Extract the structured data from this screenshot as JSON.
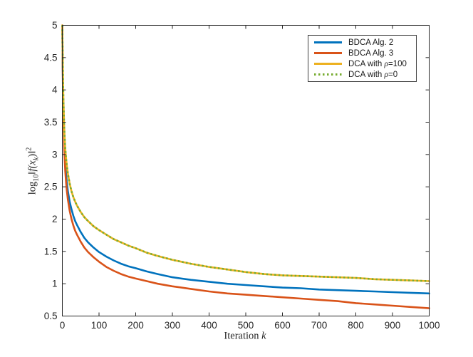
{
  "figure": {
    "background": "#ffffff",
    "axes_color": "#262626",
    "xlabel": {
      "text": "Iteration",
      "var": "k"
    },
    "ylabel": {
      "log": "log",
      "base": "10",
      "bar1": "‖",
      "fx": "f(x",
      "ksub": "k",
      "close": ")",
      "bar2": "‖",
      "exp": "2"
    },
    "x_ticks": [
      "0",
      "100",
      "200",
      "300",
      "400",
      "500",
      "600",
      "700",
      "800",
      "900",
      "1000"
    ],
    "y_ticks": [
      "0.5",
      "1",
      "1.5",
      "2",
      "2.5",
      "3",
      "3.5",
      "4",
      "4.5",
      "5"
    ]
  },
  "legend": {
    "border_color": "#404040",
    "items": [
      {
        "pre": "BDCA Alg. 2",
        "rho": "",
        "post": "",
        "color": "#0072BD",
        "style": "solid"
      },
      {
        "pre": "BDCA Alg. 3",
        "rho": "",
        "post": "",
        "color": "#D95319",
        "style": "solid"
      },
      {
        "pre": "DCA with ",
        "rho": "ρ",
        "post": "=100",
        "color": "#EDB120",
        "style": "solid"
      },
      {
        "pre": "DCA with ",
        "rho": "ρ",
        "post": "=0",
        "color": "#77AC30",
        "style": "dotted"
      }
    ]
  },
  "chart_data": {
    "type": "line",
    "title": "",
    "xlabel": "Iteration k",
    "ylabel": "log10 ||f(x_k)||^2",
    "xlim": [
      0,
      1000
    ],
    "ylim": [
      0.5,
      5
    ],
    "x_tick_step": 100,
    "y_tick_step": 0.5,
    "grid": false,
    "legend_position": "top-right",
    "series": [
      {
        "name": "BDCA Alg. 2",
        "color": "#0072BD",
        "style": "solid",
        "points": [
          [
            0,
            5.0
          ],
          [
            1,
            4.42
          ],
          [
            2,
            4.0
          ],
          [
            3,
            3.68
          ],
          [
            4,
            3.44
          ],
          [
            5,
            3.24
          ],
          [
            6,
            3.09
          ],
          [
            8,
            2.86
          ],
          [
            10,
            2.7
          ],
          [
            12,
            2.58
          ],
          [
            15,
            2.44
          ],
          [
            20,
            2.27
          ],
          [
            25,
            2.15
          ],
          [
            30,
            2.05
          ],
          [
            35,
            1.97
          ],
          [
            40,
            1.91
          ],
          [
            50,
            1.8
          ],
          [
            60,
            1.71
          ],
          [
            70,
            1.64
          ],
          [
            85,
            1.56
          ],
          [
            100,
            1.49
          ],
          [
            120,
            1.42
          ],
          [
            140,
            1.36
          ],
          [
            160,
            1.31
          ],
          [
            180,
            1.27
          ],
          [
            200,
            1.24
          ],
          [
            230,
            1.19
          ],
          [
            260,
            1.15
          ],
          [
            300,
            1.1
          ],
          [
            350,
            1.06
          ],
          [
            400,
            1.03
          ],
          [
            450,
            1.0
          ],
          [
            500,
            0.98
          ],
          [
            550,
            0.96
          ],
          [
            600,
            0.94
          ],
          [
            650,
            0.93
          ],
          [
            700,
            0.91
          ],
          [
            750,
            0.9
          ],
          [
            800,
            0.89
          ],
          [
            850,
            0.88
          ],
          [
            900,
            0.87
          ],
          [
            950,
            0.86
          ],
          [
            1000,
            0.85
          ]
        ]
      },
      {
        "name": "BDCA Alg. 3",
        "color": "#D95319",
        "style": "solid",
        "points": [
          [
            0,
            5.0
          ],
          [
            1,
            4.35
          ],
          [
            2,
            3.91
          ],
          [
            3,
            3.58
          ],
          [
            4,
            3.33
          ],
          [
            5,
            3.13
          ],
          [
            6,
            2.98
          ],
          [
            8,
            2.74
          ],
          [
            10,
            2.58
          ],
          [
            12,
            2.45
          ],
          [
            15,
            2.31
          ],
          [
            20,
            2.13
          ],
          [
            25,
            2.0
          ],
          [
            30,
            1.9
          ],
          [
            35,
            1.82
          ],
          [
            40,
            1.76
          ],
          [
            50,
            1.65
          ],
          [
            60,
            1.56
          ],
          [
            70,
            1.49
          ],
          [
            85,
            1.41
          ],
          [
            100,
            1.34
          ],
          [
            120,
            1.26
          ],
          [
            140,
            1.2
          ],
          [
            160,
            1.15
          ],
          [
            180,
            1.11
          ],
          [
            200,
            1.08
          ],
          [
            230,
            1.04
          ],
          [
            260,
            1.0
          ],
          [
            300,
            0.96
          ],
          [
            350,
            0.92
          ],
          [
            400,
            0.88
          ],
          [
            450,
            0.85
          ],
          [
            500,
            0.83
          ],
          [
            550,
            0.81
          ],
          [
            600,
            0.79
          ],
          [
            650,
            0.77
          ],
          [
            700,
            0.75
          ],
          [
            750,
            0.73
          ],
          [
            800,
            0.7
          ],
          [
            850,
            0.68
          ],
          [
            900,
            0.66
          ],
          [
            950,
            0.64
          ],
          [
            1000,
            0.62
          ]
        ]
      },
      {
        "name": "DCA with ρ=100",
        "color": "#EDB120",
        "style": "solid",
        "points": [
          [
            0,
            5.0
          ],
          [
            1,
            4.52
          ],
          [
            2,
            4.15
          ],
          [
            3,
            3.86
          ],
          [
            4,
            3.63
          ],
          [
            5,
            3.44
          ],
          [
            6,
            3.3
          ],
          [
            8,
            3.09
          ],
          [
            10,
            2.95
          ],
          [
            12,
            2.84
          ],
          [
            15,
            2.71
          ],
          [
            20,
            2.55
          ],
          [
            25,
            2.43
          ],
          [
            30,
            2.34
          ],
          [
            35,
            2.27
          ],
          [
            40,
            2.21
          ],
          [
            50,
            2.11
          ],
          [
            60,
            2.03
          ],
          [
            70,
            1.97
          ],
          [
            85,
            1.89
          ],
          [
            100,
            1.83
          ],
          [
            120,
            1.76
          ],
          [
            140,
            1.69
          ],
          [
            160,
            1.64
          ],
          [
            180,
            1.59
          ],
          [
            200,
            1.55
          ],
          [
            230,
            1.48
          ],
          [
            260,
            1.43
          ],
          [
            300,
            1.37
          ],
          [
            350,
            1.31
          ],
          [
            400,
            1.26
          ],
          [
            450,
            1.22
          ],
          [
            500,
            1.18
          ],
          [
            550,
            1.15
          ],
          [
            600,
            1.13
          ],
          [
            650,
            1.12
          ],
          [
            700,
            1.11
          ],
          [
            750,
            1.1
          ],
          [
            800,
            1.09
          ],
          [
            850,
            1.07
          ],
          [
            900,
            1.06
          ],
          [
            950,
            1.05
          ],
          [
            1000,
            1.04
          ]
        ]
      },
      {
        "name": "DCA with ρ=0",
        "color": "#77AC30",
        "style": "dotted",
        "points": [
          [
            0,
            5.0
          ],
          [
            1,
            4.52
          ],
          [
            2,
            4.15
          ],
          [
            3,
            3.86
          ],
          [
            4,
            3.63
          ],
          [
            5,
            3.44
          ],
          [
            6,
            3.3
          ],
          [
            8,
            3.09
          ],
          [
            10,
            2.95
          ],
          [
            12,
            2.84
          ],
          [
            15,
            2.71
          ],
          [
            20,
            2.55
          ],
          [
            25,
            2.43
          ],
          [
            30,
            2.34
          ],
          [
            35,
            2.27
          ],
          [
            40,
            2.21
          ],
          [
            50,
            2.11
          ],
          [
            60,
            2.03
          ],
          [
            70,
            1.97
          ],
          [
            85,
            1.89
          ],
          [
            100,
            1.83
          ],
          [
            120,
            1.76
          ],
          [
            140,
            1.69
          ],
          [
            160,
            1.64
          ],
          [
            180,
            1.59
          ],
          [
            200,
            1.55
          ],
          [
            230,
            1.48
          ],
          [
            260,
            1.43
          ],
          [
            300,
            1.37
          ],
          [
            350,
            1.31
          ],
          [
            400,
            1.26
          ],
          [
            450,
            1.22
          ],
          [
            500,
            1.18
          ],
          [
            550,
            1.15
          ],
          [
            600,
            1.13
          ],
          [
            650,
            1.12
          ],
          [
            700,
            1.11
          ],
          [
            750,
            1.1
          ],
          [
            800,
            1.09
          ],
          [
            850,
            1.07
          ],
          [
            900,
            1.06
          ],
          [
            950,
            1.05
          ],
          [
            1000,
            1.04
          ]
        ]
      }
    ]
  }
}
